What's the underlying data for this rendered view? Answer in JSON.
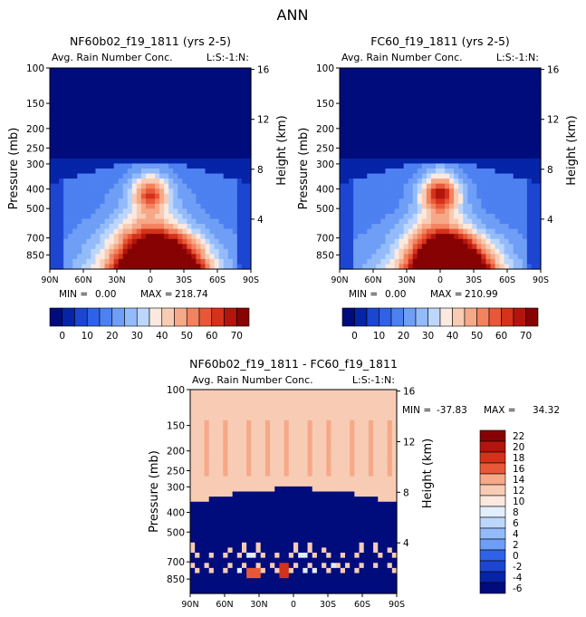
{
  "figure_title": "ANN",
  "colors": {
    "scale": [
      "#000c7c",
      "#0524a8",
      "#1c46d2",
      "#2f62e8",
      "#4d80f0",
      "#6f9ef6",
      "#93bbfa",
      "#bcd6fc",
      "#e3eefd",
      "#fbe9df",
      "#f8ccb4",
      "#f6a988",
      "#f3825f",
      "#e85838",
      "#d4321b",
      "#b3150c",
      "#870303"
    ]
  },
  "chart_data": [
    {
      "type": "heatmap",
      "id": "panel-a",
      "title": "NF60b02_f19_1811 (yrs 2-5)",
      "subtitle": "Avg. Rain Number Conc.",
      "level_label": "L:S:-1:N:",
      "ylabel_left": "Pressure (mb)",
      "ylabel_right": "Height (km)",
      "x_ticks": [
        "90N",
        "60N",
        "30N",
        "0",
        "30S",
        "60S",
        "90S"
      ],
      "x_values": [
        90,
        60,
        30,
        0,
        -30,
        -60,
        -90
      ],
      "y_ticks": [
        "100",
        "150",
        "200",
        "250",
        "300",
        "400",
        "500",
        "700",
        "850"
      ],
      "y_values": [
        100,
        150,
        200,
        250,
        300,
        400,
        500,
        700,
        850
      ],
      "height_ticks": [
        "16",
        "12",
        "8",
        "4"
      ],
      "height_values": [
        16,
        12,
        8,
        4
      ],
      "stats": {
        "min_label": "MIN =",
        "min": "0.00",
        "max_label": "MAX =",
        "max": "218.74"
      },
      "colorbar_ticks": [
        "0",
        "10",
        "20",
        "30",
        "40",
        "50",
        "60",
        "70"
      ],
      "colorbar_levels": 16,
      "ylim": [
        100,
        1000
      ]
    },
    {
      "type": "heatmap",
      "id": "panel-b",
      "title": "FC60_f19_1811 (yrs 2-5)",
      "subtitle": "Avg. Rain Number Conc.",
      "level_label": "L:S:-1:N:",
      "ylabel_left": "Pressure (mb)",
      "ylabel_right": "Height (km)",
      "x_ticks": [
        "90N",
        "60N",
        "30N",
        "0",
        "30S",
        "60S",
        "90S"
      ],
      "x_values": [
        90,
        60,
        30,
        0,
        -30,
        -60,
        -90
      ],
      "y_ticks": [
        "100",
        "150",
        "200",
        "250",
        "300",
        "400",
        "500",
        "700",
        "850"
      ],
      "y_values": [
        100,
        150,
        200,
        250,
        300,
        400,
        500,
        700,
        850
      ],
      "height_ticks": [
        "16",
        "12",
        "8",
        "4"
      ],
      "height_values": [
        16,
        12,
        8,
        4
      ],
      "stats": {
        "min_label": "MIN =",
        "min": "0.00",
        "max_label": "MAX =",
        "max": "210.99"
      },
      "colorbar_ticks": [
        "0",
        "10",
        "20",
        "30",
        "40",
        "50",
        "60",
        "70"
      ],
      "colorbar_levels": 16,
      "ylim": [
        100,
        1000
      ]
    },
    {
      "type": "heatmap",
      "id": "panel-diff",
      "title": "NF60b02_f19_1811 - FC60_f19_1811",
      "subtitle": "Avg. Rain Number Conc.",
      "level_label": "L:S:-1:N:",
      "ylabel_left": "Pressure (mb)",
      "ylabel_right": "Height (km)",
      "x_ticks": [
        "90N",
        "60N",
        "30N",
        "0",
        "30S",
        "60S",
        "90S"
      ],
      "x_values": [
        90,
        60,
        30,
        0,
        -30,
        -60,
        -90
      ],
      "y_ticks": [
        "100",
        "150",
        "200",
        "250",
        "300",
        "400",
        "500",
        "700",
        "850"
      ],
      "y_values": [
        100,
        150,
        200,
        250,
        300,
        400,
        500,
        700,
        850
      ],
      "height_ticks": [
        "16",
        "12",
        "8",
        "4"
      ],
      "height_values": [
        16,
        12,
        8,
        4
      ],
      "stats": {
        "min_label": "MIN =",
        "min": "-37.83",
        "max_label": "MAX =",
        "max": "34.32"
      },
      "colorbar_ticks": [
        "22",
        "20",
        "18",
        "16",
        "14",
        "12",
        "10",
        "8",
        "6",
        "4",
        "2",
        "0",
        "-2",
        "-4",
        "-6"
      ],
      "colorbar_levels": 15,
      "ylim": [
        100,
        1000
      ]
    }
  ]
}
